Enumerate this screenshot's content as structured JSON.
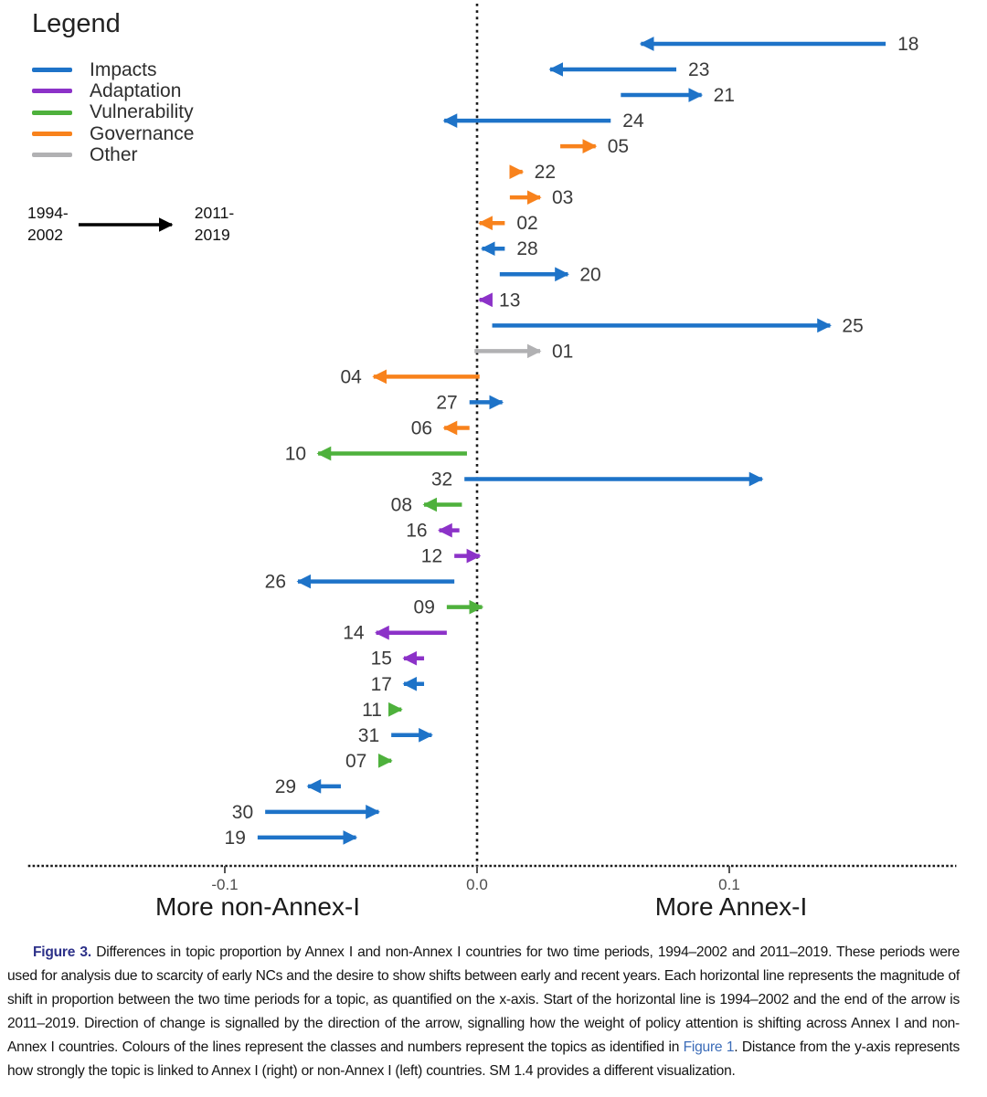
{
  "legend": {
    "title": "Legend",
    "items": [
      {
        "key": "impacts",
        "label": "Impacts",
        "color": "#1e73c8"
      },
      {
        "key": "adaptation",
        "label": "Adaptation",
        "color": "#8c32c8"
      },
      {
        "key": "vulnerability",
        "label": "Vulnerability",
        "color": "#4eb13c"
      },
      {
        "key": "governance",
        "label": "Governance",
        "color": "#f8821c"
      },
      {
        "key": "other",
        "label": "Other",
        "color": "#b1b1b3"
      }
    ],
    "period": {
      "start": [
        "1994-",
        "2002"
      ],
      "end": [
        "2011-",
        "2019"
      ],
      "arrow_color": "#000000"
    }
  },
  "chart_data": {
    "type": "arrow",
    "title": "",
    "xlabel_left": "More non-Annex-I",
    "xlabel_right": "More Annex-I",
    "x_ticks": [
      -0.1,
      0.0,
      0.1
    ],
    "x_tick_labels": [
      "-0.1",
      "0.0",
      "0.1"
    ],
    "xlim": [
      -0.178,
      0.19
    ],
    "grid": false,
    "legend_position": "top-left",
    "arrow_start_period": "1994-2002",
    "arrow_end_period": "2011-2019",
    "class_colors": {
      "Impacts": "#1e73c8",
      "Adaptation": "#8c32c8",
      "Vulnerability": "#4eb13c",
      "Governance": "#f8821c",
      "Other": "#b1b1b3"
    },
    "topics": [
      {
        "id": "18",
        "class": "Impacts",
        "start": 0.162,
        "end": 0.065,
        "label_side": "right"
      },
      {
        "id": "23",
        "class": "Impacts",
        "start": 0.079,
        "end": 0.029,
        "label_side": "right"
      },
      {
        "id": "21",
        "class": "Impacts",
        "start": 0.057,
        "end": 0.089,
        "label_side": "right"
      },
      {
        "id": "24",
        "class": "Impacts",
        "start": 0.053,
        "end": -0.013,
        "label_side": "right"
      },
      {
        "id": "05",
        "class": "Governance",
        "start": 0.033,
        "end": 0.047,
        "label_side": "right"
      },
      {
        "id": "22",
        "class": "Governance",
        "start": 0.015,
        "end": 0.018,
        "label_side": "right"
      },
      {
        "id": "03",
        "class": "Governance",
        "start": 0.013,
        "end": 0.025,
        "label_side": "right"
      },
      {
        "id": "02",
        "class": "Governance",
        "start": 0.011,
        "end": 0.001,
        "label_side": "right"
      },
      {
        "id": "28",
        "class": "Impacts",
        "start": 0.011,
        "end": 0.002,
        "label_side": "right"
      },
      {
        "id": "20",
        "class": "Impacts",
        "start": 0.009,
        "end": 0.036,
        "label_side": "right"
      },
      {
        "id": "13",
        "class": "Adaptation",
        "start": 0.004,
        "end": 0.001,
        "label_side": "right"
      },
      {
        "id": "25",
        "class": "Impacts",
        "start": 0.006,
        "end": 0.14,
        "label_side": "right"
      },
      {
        "id": "01",
        "class": "Other",
        "start": -0.001,
        "end": 0.025,
        "label_side": "right"
      },
      {
        "id": "04",
        "class": "Governance",
        "start": 0.001,
        "end": -0.041,
        "label_side": "left"
      },
      {
        "id": "27",
        "class": "Impacts",
        "start": -0.003,
        "end": 0.01,
        "label_side": "left"
      },
      {
        "id": "06",
        "class": "Governance",
        "start": -0.003,
        "end": -0.013,
        "label_side": "left"
      },
      {
        "id": "10",
        "class": "Vulnerability",
        "start": -0.004,
        "end": -0.063,
        "label_side": "left"
      },
      {
        "id": "32",
        "class": "Impacts",
        "start": -0.005,
        "end": 0.113,
        "label_side": "left"
      },
      {
        "id": "08",
        "class": "Vulnerability",
        "start": -0.006,
        "end": -0.021,
        "label_side": "left"
      },
      {
        "id": "16",
        "class": "Adaptation",
        "start": -0.007,
        "end": -0.015,
        "label_side": "left"
      },
      {
        "id": "12",
        "class": "Adaptation",
        "start": -0.009,
        "end": 0.001,
        "label_side": "left"
      },
      {
        "id": "26",
        "class": "Impacts",
        "start": -0.009,
        "end": -0.071,
        "label_side": "left"
      },
      {
        "id": "09",
        "class": "Vulnerability",
        "start": -0.012,
        "end": 0.002,
        "label_side": "left"
      },
      {
        "id": "14",
        "class": "Adaptation",
        "start": -0.012,
        "end": -0.04,
        "label_side": "left"
      },
      {
        "id": "15",
        "class": "Adaptation",
        "start": -0.021,
        "end": -0.029,
        "label_side": "left"
      },
      {
        "id": "17",
        "class": "Impacts",
        "start": -0.021,
        "end": -0.029,
        "label_side": "left"
      },
      {
        "id": "11",
        "class": "Vulnerability",
        "start": -0.033,
        "end": -0.03,
        "label_side": "left"
      },
      {
        "id": "31",
        "class": "Impacts",
        "start": -0.034,
        "end": -0.018,
        "label_side": "left"
      },
      {
        "id": "07",
        "class": "Vulnerability",
        "start": -0.039,
        "end": -0.034,
        "label_side": "left"
      },
      {
        "id": "29",
        "class": "Impacts",
        "start": -0.054,
        "end": -0.067,
        "label_side": "left"
      },
      {
        "id": "30",
        "class": "Impacts",
        "start": -0.084,
        "end": -0.039,
        "label_side": "left"
      },
      {
        "id": "19",
        "class": "Impacts",
        "start": -0.087,
        "end": -0.048,
        "label_side": "left"
      }
    ]
  },
  "caption": {
    "label": "Figure 3.",
    "text_before_link": " Differences in topic proportion by Annex I and non-Annex I countries for two time periods, 1994–2002 and 2011–2019. These periods were used for analysis due to scarcity of early NCs and the desire to show shifts between early and recent years. Each horizontal line represents the magnitude of shift in proportion between the two time periods for a topic, as quantified on the x-axis. Start of the horizontal line is 1994–2002 and the end of the arrow is 2011–2019. Direction of change is signalled by the direction of the arrow, signalling how the weight of policy attention is shifting across Annex I and non-Annex I countries. Colours of the lines represent the classes and numbers represent the topics as identified in ",
    "link_text": "Figure 1",
    "text_after_link": ". Distance from the y-axis represents how strongly the topic is linked to Annex I (right) or non-Annex I (left) countries. SM 1.4 provides a different visualization."
  }
}
